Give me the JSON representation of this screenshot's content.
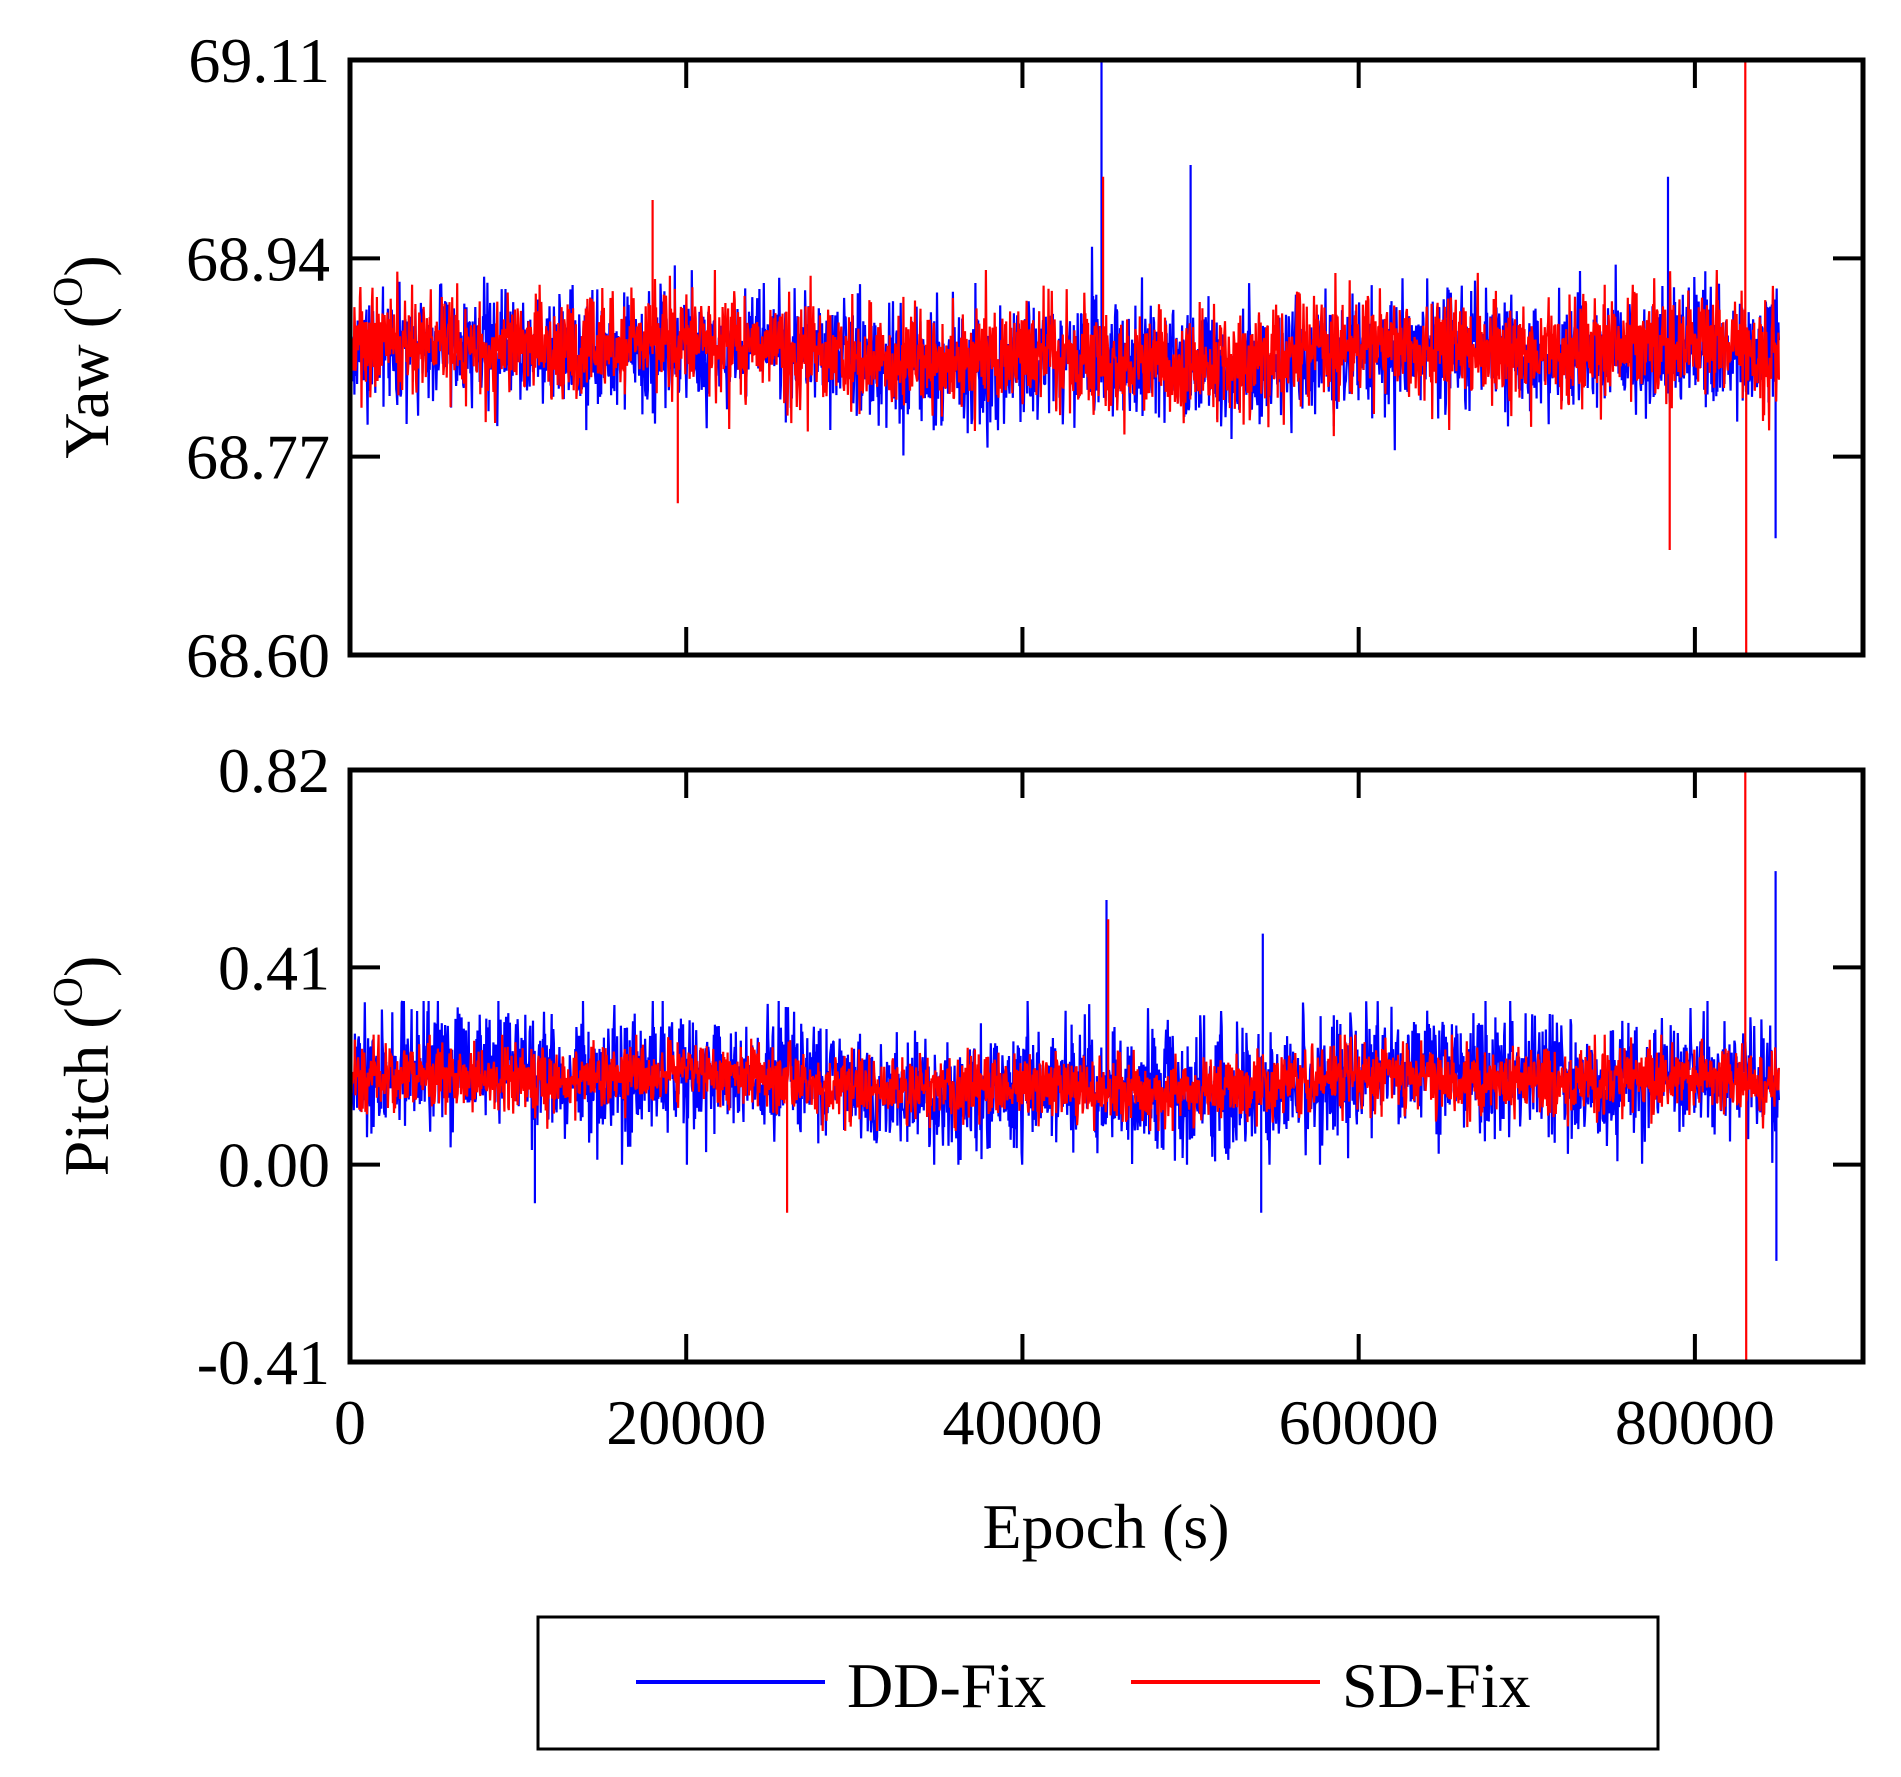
{
  "chart_data": [
    {
      "type": "line",
      "panel": "top",
      "title": "",
      "xlabel": "",
      "ylabel": "Yaw (",
      "ylabel_sup": "O",
      "ylabel_close": ")",
      "xlim": [
        0,
        90000
      ],
      "ylim": [
        68.6,
        69.11
      ],
      "yticks": [
        69.11,
        68.94,
        68.77,
        68.6
      ],
      "ytick_labels": [
        "69.11",
        "68.94",
        "68.77",
        "68.60"
      ],
      "xticks": [
        0,
        20000,
        40000,
        60000,
        80000
      ],
      "x_range": [
        0,
        85000
      ],
      "series": [
        {
          "name": "DD-Fix",
          "color": "#0000ff",
          "center": 68.855,
          "sigma": 0.024,
          "band": [
            68.76,
            68.95
          ],
          "spikes": [
            {
              "x": 44700,
              "y": 69.11
            },
            {
              "x": 50000,
              "y": 69.02
            },
            {
              "x": 78400,
              "y": 69.01
            },
            {
              "x": 84800,
              "y": 68.7
            }
          ]
        },
        {
          "name": "SD-Fix",
          "color": "#ff0000",
          "center": 68.858,
          "sigma": 0.022,
          "band": [
            68.78,
            68.93
          ],
          "spikes": [
            {
              "x": 44800,
              "y": 69.01
            },
            {
              "x": 18000,
              "y": 68.99
            },
            {
              "x": 19500,
              "y": 68.73
            },
            {
              "x": 78500,
              "y": 68.69
            },
            {
              "x": 83000,
              "y": 69.11
            },
            {
              "x": 83050,
              "y": 68.6
            }
          ]
        }
      ]
    },
    {
      "type": "line",
      "panel": "bottom",
      "title": "",
      "xlabel": "Epoch (s)",
      "ylabel": "Pitch (",
      "ylabel_sup": "O",
      "ylabel_close": ")",
      "xlim": [
        0,
        90000
      ],
      "ylim": [
        -0.41,
        0.82
      ],
      "yticks": [
        0.82,
        0.41,
        0.0,
        -0.41
      ],
      "ytick_labels": [
        "0.82",
        "0.41",
        "0.00",
        "-0.41"
      ],
      "xticks": [
        0,
        20000,
        40000,
        60000,
        80000
      ],
      "xtick_labels": [
        "0",
        "20000",
        "40000",
        "60000",
        "80000"
      ],
      "x_range": [
        0,
        85000
      ],
      "series": [
        {
          "name": "DD-Fix",
          "color": "#0000ff",
          "center": 0.17,
          "sigma": 0.062,
          "band": [
            0.0,
            0.34
          ],
          "spikes": [
            {
              "x": 45000,
              "y": 0.55
            },
            {
              "x": 54300,
              "y": 0.48
            },
            {
              "x": 84800,
              "y": 0.61
            },
            {
              "x": 84850,
              "y": -0.2
            },
            {
              "x": 54200,
              "y": -0.1
            },
            {
              "x": 11000,
              "y": -0.08
            }
          ]
        },
        {
          "name": "SD-Fix",
          "color": "#ff0000",
          "center": 0.17,
          "sigma": 0.035,
          "band": [
            0.07,
            0.27
          ],
          "spikes": [
            {
              "x": 45100,
              "y": 0.51
            },
            {
              "x": 83000,
              "y": 0.82
            },
            {
              "x": 83050,
              "y": -0.41
            },
            {
              "x": 26000,
              "y": -0.1
            }
          ]
        }
      ]
    }
  ],
  "legend": {
    "placement": "bottom-center",
    "entries": [
      {
        "name": "DD-Fix",
        "color": "#0000ff"
      },
      {
        "name": "SD-Fix",
        "color": "#ff0000"
      }
    ]
  }
}
